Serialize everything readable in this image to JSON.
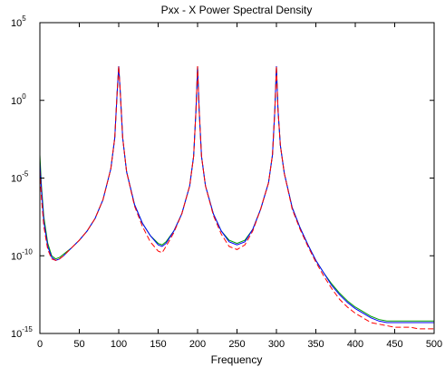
{
  "chart_data": {
    "type": "line",
    "title": "Pxx - X Power Spectral Density",
    "xlabel": "Frequency",
    "ylabel": "",
    "xlim": [
      0,
      500
    ],
    "ylim_log10": [
      -15,
      5
    ],
    "yscale": "log",
    "grid": false,
    "x_ticks": [
      "0",
      "50",
      "100",
      "150",
      "200",
      "250",
      "300",
      "350",
      "400",
      "450",
      "500"
    ],
    "y_ticks": [
      {
        "base": "10",
        "exp": "5"
      },
      {
        "base": "10",
        "exp": "0"
      },
      {
        "base": "10",
        "exp": "-5"
      },
      {
        "base": "10",
        "exp": "-10"
      },
      {
        "base": "10",
        "exp": "-15"
      }
    ],
    "y_tick_exponents": [
      5,
      0,
      -5,
      -10,
      -15
    ],
    "x_tick_values": [
      0,
      50,
      100,
      150,
      200,
      250,
      300,
      350,
      400,
      450,
      500
    ],
    "series": [
      {
        "color": "#00a000",
        "style": "solid",
        "x": [
          0,
          2,
          5,
          10,
          15,
          20,
          25,
          30,
          40,
          50,
          60,
          70,
          80,
          90,
          95,
          98,
          100,
          102,
          105,
          110,
          120,
          130,
          140,
          150,
          155,
          160,
          170,
          180,
          190,
          195,
          198,
          200,
          202,
          205,
          210,
          220,
          230,
          240,
          250,
          260,
          270,
          280,
          290,
          295,
          298,
          300,
          302,
          305,
          310,
          320,
          330,
          340,
          350,
          360,
          370,
          380,
          390,
          400,
          410,
          420,
          430,
          440,
          450,
          460,
          470,
          480,
          490,
          500
        ],
        "y_log10": [
          -3.5,
          -5.5,
          -7.5,
          -9.2,
          -10.0,
          -10.2,
          -10.1,
          -9.9,
          -9.5,
          -9.0,
          -8.4,
          -7.6,
          -6.4,
          -4.4,
          -2.4,
          0.5,
          2.2,
          0.5,
          -2.4,
          -4.6,
          -6.7,
          -7.9,
          -8.7,
          -9.2,
          -9.3,
          -9.1,
          -8.4,
          -7.3,
          -5.5,
          -3.6,
          -0.6,
          2.2,
          -0.6,
          -3.6,
          -5.5,
          -7.3,
          -8.4,
          -9.0,
          -9.2,
          -9.0,
          -8.3,
          -7.0,
          -5.3,
          -3.5,
          -0.6,
          2.2,
          -0.6,
          -2.9,
          -4.7,
          -6.9,
          -8.2,
          -9.3,
          -10.3,
          -11.1,
          -11.8,
          -12.4,
          -12.9,
          -13.3,
          -13.6,
          -13.9,
          -14.1,
          -14.2,
          -14.2,
          -14.2,
          -14.2,
          -14.2,
          -14.2,
          -14.2
        ]
      },
      {
        "color": "#0000ff",
        "style": "solid",
        "x": [
          0,
          2,
          5,
          10,
          15,
          20,
          25,
          30,
          40,
          50,
          60,
          70,
          80,
          90,
          95,
          98,
          100,
          102,
          105,
          110,
          120,
          130,
          140,
          150,
          155,
          160,
          170,
          180,
          190,
          195,
          198,
          200,
          202,
          205,
          210,
          220,
          230,
          240,
          250,
          260,
          270,
          280,
          290,
          295,
          298,
          300,
          302,
          305,
          310,
          320,
          330,
          340,
          350,
          360,
          370,
          380,
          390,
          400,
          410,
          420,
          430,
          440,
          450,
          460,
          470,
          480,
          490,
          500
        ],
        "y_log10": [
          -4.0,
          -5.8,
          -7.8,
          -9.4,
          -10.1,
          -10.3,
          -10.2,
          -10.0,
          -9.5,
          -9.0,
          -8.4,
          -7.6,
          -6.4,
          -4.4,
          -2.4,
          0.5,
          2.2,
          0.5,
          -2.4,
          -4.6,
          -6.7,
          -7.9,
          -8.7,
          -9.3,
          -9.4,
          -9.2,
          -8.4,
          -7.3,
          -5.5,
          -3.6,
          -0.6,
          2.2,
          -0.6,
          -3.6,
          -5.5,
          -7.3,
          -8.4,
          -9.1,
          -9.3,
          -9.1,
          -8.3,
          -7.0,
          -5.3,
          -3.5,
          -0.6,
          2.2,
          -0.6,
          -2.9,
          -4.7,
          -6.9,
          -8.2,
          -9.3,
          -10.3,
          -11.1,
          -11.9,
          -12.5,
          -13.0,
          -13.4,
          -13.7,
          -14.0,
          -14.2,
          -14.3,
          -14.3,
          -14.3,
          -14.3,
          -14.3,
          -14.3,
          -14.3
        ]
      },
      {
        "color": "#ff0000",
        "style": "dashed",
        "x": [
          0,
          2,
          5,
          10,
          15,
          20,
          25,
          30,
          40,
          50,
          60,
          70,
          80,
          90,
          95,
          98,
          100,
          102,
          105,
          110,
          120,
          130,
          140,
          150,
          155,
          160,
          170,
          180,
          190,
          195,
          198,
          200,
          202,
          205,
          210,
          220,
          230,
          240,
          250,
          260,
          270,
          280,
          290,
          295,
          298,
          300,
          302,
          305,
          310,
          320,
          330,
          340,
          350,
          360,
          370,
          380,
          390,
          400,
          410,
          420,
          430,
          440,
          450,
          460,
          470,
          480,
          490,
          500
        ],
        "y_log10": [
          -4.5,
          -6.3,
          -8.1,
          -9.6,
          -10.2,
          -10.3,
          -10.2,
          -10.0,
          -9.5,
          -9.0,
          -8.4,
          -7.6,
          -6.4,
          -4.4,
          -2.4,
          0.5,
          2.2,
          0.5,
          -2.4,
          -4.6,
          -6.8,
          -8.1,
          -9.1,
          -9.7,
          -9.8,
          -9.4,
          -8.5,
          -7.3,
          -5.5,
          -3.6,
          -0.6,
          2.2,
          -0.6,
          -3.6,
          -5.5,
          -7.4,
          -8.6,
          -9.4,
          -9.6,
          -9.3,
          -8.4,
          -7.0,
          -5.3,
          -3.5,
          -0.6,
          2.2,
          -0.6,
          -2.9,
          -4.7,
          -7.0,
          -8.3,
          -9.4,
          -10.4,
          -11.3,
          -12.1,
          -12.8,
          -13.3,
          -13.7,
          -14.0,
          -14.3,
          -14.4,
          -14.5,
          -14.6,
          -14.6,
          -14.6,
          -14.7,
          -14.7,
          -14.7
        ]
      }
    ]
  }
}
